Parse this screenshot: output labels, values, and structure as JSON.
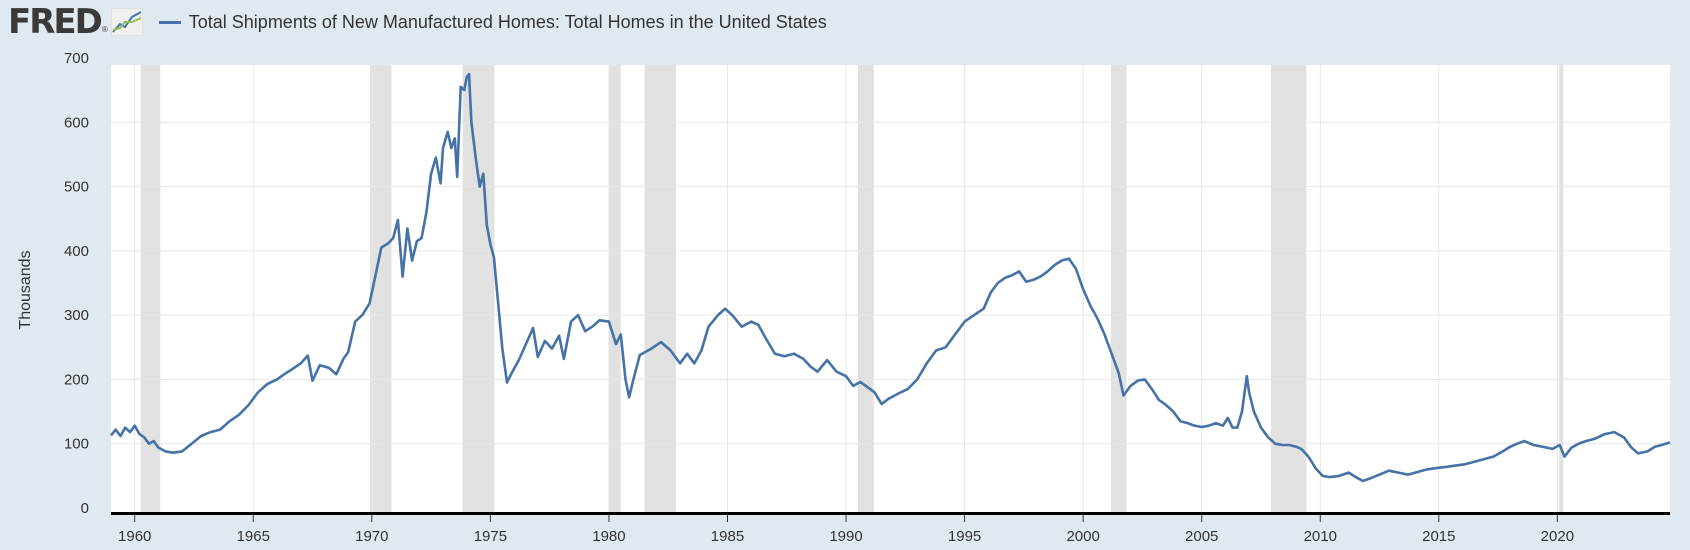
{
  "header": {
    "logo_text": "FRED",
    "logo_reg": "®",
    "series_title": "Total Shipments of New Manufactured Homes: Total Homes in the United States"
  },
  "colors": {
    "series": "#4572a7",
    "recession": "#e1e1e1",
    "background": "#e1e9f0",
    "plot": "#ffffff"
  },
  "chart_data": {
    "type": "line",
    "title": "Total Shipments of New Manufactured Homes: Total Homes in the United States",
    "ylabel": "Thousands",
    "xlabel": "",
    "ylim": [
      0,
      700
    ],
    "xlim": [
      1959.0,
      2024.75
    ],
    "yticks": [
      0,
      100,
      200,
      300,
      400,
      500,
      600,
      700
    ],
    "xticks": [
      1960,
      1965,
      1970,
      1975,
      1980,
      1985,
      1990,
      1995,
      2000,
      2005,
      2010,
      2015,
      2020
    ],
    "grid": true,
    "legend": "top-left",
    "recessions": [
      [
        1960.25,
        1961.08
      ],
      [
        1969.92,
        1970.83
      ],
      [
        1973.83,
        1975.17
      ],
      [
        1980.0,
        1980.5
      ],
      [
        1981.5,
        1982.83
      ],
      [
        1990.5,
        1991.17
      ],
      [
        2001.17,
        2001.83
      ],
      [
        2007.92,
        2009.42
      ],
      [
        2020.08,
        2020.25
      ]
    ],
    "series": [
      {
        "name": "Total Shipments of New Manufactured Homes: Total Homes in the United States",
        "points": [
          [
            1959.0,
            113
          ],
          [
            1959.2,
            122
          ],
          [
            1959.4,
            112
          ],
          [
            1959.6,
            125
          ],
          [
            1959.8,
            118
          ],
          [
            1960.0,
            128
          ],
          [
            1960.2,
            115
          ],
          [
            1960.4,
            110
          ],
          [
            1960.6,
            100
          ],
          [
            1960.8,
            104
          ],
          [
            1961.0,
            94
          ],
          [
            1961.3,
            88
          ],
          [
            1961.6,
            86
          ],
          [
            1962.0,
            88
          ],
          [
            1962.4,
            100
          ],
          [
            1962.8,
            112
          ],
          [
            1963.2,
            118
          ],
          [
            1963.6,
            122
          ],
          [
            1964.0,
            135
          ],
          [
            1964.4,
            145
          ],
          [
            1964.8,
            160
          ],
          [
            1965.2,
            180
          ],
          [
            1965.6,
            193
          ],
          [
            1966.0,
            200
          ],
          [
            1966.3,
            208
          ],
          [
            1966.6,
            215
          ],
          [
            1967.0,
            225
          ],
          [
            1967.3,
            237
          ],
          [
            1967.5,
            198
          ],
          [
            1967.8,
            222
          ],
          [
            1968.2,
            218
          ],
          [
            1968.5,
            208
          ],
          [
            1968.8,
            232
          ],
          [
            1969.0,
            242
          ],
          [
            1969.3,
            290
          ],
          [
            1969.6,
            300
          ],
          [
            1969.9,
            318
          ],
          [
            1970.2,
            370
          ],
          [
            1970.4,
            405
          ],
          [
            1970.7,
            412
          ],
          [
            1970.9,
            420
          ],
          [
            1971.1,
            448
          ],
          [
            1971.3,
            360
          ],
          [
            1971.5,
            435
          ],
          [
            1971.7,
            385
          ],
          [
            1971.9,
            415
          ],
          [
            1972.1,
            420
          ],
          [
            1972.3,
            460
          ],
          [
            1972.5,
            520
          ],
          [
            1972.7,
            545
          ],
          [
            1972.9,
            505
          ],
          [
            1973.0,
            560
          ],
          [
            1973.2,
            585
          ],
          [
            1973.35,
            560
          ],
          [
            1973.5,
            575
          ],
          [
            1973.6,
            515
          ],
          [
            1973.75,
            655
          ],
          [
            1973.9,
            650
          ],
          [
            1974.0,
            670
          ],
          [
            1974.1,
            675
          ],
          [
            1974.2,
            600
          ],
          [
            1974.4,
            540
          ],
          [
            1974.55,
            500
          ],
          [
            1974.7,
            520
          ],
          [
            1974.85,
            440
          ],
          [
            1975.0,
            410
          ],
          [
            1975.15,
            390
          ],
          [
            1975.3,
            330
          ],
          [
            1975.5,
            250
          ],
          [
            1975.7,
            195
          ],
          [
            1975.9,
            210
          ],
          [
            1976.2,
            230
          ],
          [
            1976.5,
            255
          ],
          [
            1976.8,
            280
          ],
          [
            1977.0,
            235
          ],
          [
            1977.3,
            260
          ],
          [
            1977.6,
            248
          ],
          [
            1977.9,
            268
          ],
          [
            1978.1,
            232
          ],
          [
            1978.4,
            290
          ],
          [
            1978.7,
            300
          ],
          [
            1979.0,
            275
          ],
          [
            1979.3,
            282
          ],
          [
            1979.6,
            292
          ],
          [
            1980.0,
            290
          ],
          [
            1980.3,
            255
          ],
          [
            1980.5,
            270
          ],
          [
            1980.7,
            200
          ],
          [
            1980.85,
            172
          ],
          [
            1981.0,
            195
          ],
          [
            1981.3,
            238
          ],
          [
            1981.7,
            246
          ],
          [
            1982.2,
            258
          ],
          [
            1982.6,
            245
          ],
          [
            1983.0,
            225
          ],
          [
            1983.3,
            240
          ],
          [
            1983.6,
            225
          ],
          [
            1983.9,
            245
          ],
          [
            1984.2,
            282
          ],
          [
            1984.6,
            300
          ],
          [
            1984.9,
            310
          ],
          [
            1985.2,
            300
          ],
          [
            1985.6,
            282
          ],
          [
            1986.0,
            290
          ],
          [
            1986.3,
            285
          ],
          [
            1986.6,
            265
          ],
          [
            1987.0,
            240
          ],
          [
            1987.4,
            236
          ],
          [
            1987.8,
            240
          ],
          [
            1988.2,
            232
          ],
          [
            1988.5,
            220
          ],
          [
            1988.8,
            212
          ],
          [
            1989.2,
            230
          ],
          [
            1989.6,
            212
          ],
          [
            1990.0,
            205
          ],
          [
            1990.3,
            190
          ],
          [
            1990.6,
            196
          ],
          [
            1990.9,
            188
          ],
          [
            1991.2,
            180
          ],
          [
            1991.5,
            162
          ],
          [
            1991.8,
            170
          ],
          [
            1992.2,
            178
          ],
          [
            1992.6,
            185
          ],
          [
            1993.0,
            200
          ],
          [
            1993.4,
            225
          ],
          [
            1993.8,
            245
          ],
          [
            1994.2,
            250
          ],
          [
            1994.6,
            270
          ],
          [
            1995.0,
            290
          ],
          [
            1995.4,
            300
          ],
          [
            1995.8,
            310
          ],
          [
            1996.1,
            335
          ],
          [
            1996.4,
            350
          ],
          [
            1996.7,
            358
          ],
          [
            1997.0,
            362
          ],
          [
            1997.3,
            368
          ],
          [
            1997.6,
            352
          ],
          [
            1997.9,
            355
          ],
          [
            1998.2,
            360
          ],
          [
            1998.5,
            368
          ],
          [
            1998.8,
            378
          ],
          [
            1999.1,
            385
          ],
          [
            1999.4,
            388
          ],
          [
            1999.7,
            372
          ],
          [
            2000.0,
            340
          ],
          [
            2000.3,
            315
          ],
          [
            2000.6,
            295
          ],
          [
            2000.9,
            270
          ],
          [
            2001.2,
            240
          ],
          [
            2001.5,
            210
          ],
          [
            2001.7,
            175
          ],
          [
            2002.0,
            190
          ],
          [
            2002.3,
            198
          ],
          [
            2002.6,
            200
          ],
          [
            2002.9,
            185
          ],
          [
            2003.2,
            168
          ],
          [
            2003.5,
            160
          ],
          [
            2003.8,
            150
          ],
          [
            2004.1,
            135
          ],
          [
            2004.4,
            132
          ],
          [
            2004.7,
            128
          ],
          [
            2005.0,
            126
          ],
          [
            2005.3,
            128
          ],
          [
            2005.6,
            132
          ],
          [
            2005.9,
            128
          ],
          [
            2006.1,
            140
          ],
          [
            2006.3,
            125
          ],
          [
            2006.5,
            125
          ],
          [
            2006.7,
            150
          ],
          [
            2006.9,
            205
          ],
          [
            2007.0,
            180
          ],
          [
            2007.2,
            150
          ],
          [
            2007.5,
            125
          ],
          [
            2007.8,
            110
          ],
          [
            2008.1,
            100
          ],
          [
            2008.4,
            98
          ],
          [
            2008.7,
            98
          ],
          [
            2009.0,
            95
          ],
          [
            2009.2,
            92
          ],
          [
            2009.5,
            80
          ],
          [
            2009.8,
            62
          ],
          [
            2010.1,
            50
          ],
          [
            2010.4,
            48
          ],
          [
            2010.8,
            50
          ],
          [
            2011.2,
            55
          ],
          [
            2011.5,
            48
          ],
          [
            2011.8,
            42
          ],
          [
            2012.1,
            46
          ],
          [
            2012.5,
            52
          ],
          [
            2012.9,
            58
          ],
          [
            2013.3,
            55
          ],
          [
            2013.7,
            52
          ],
          [
            2014.1,
            56
          ],
          [
            2014.5,
            60
          ],
          [
            2014.9,
            62
          ],
          [
            2015.3,
            64
          ],
          [
            2015.7,
            66
          ],
          [
            2016.1,
            68
          ],
          [
            2016.5,
            72
          ],
          [
            2016.9,
            76
          ],
          [
            2017.3,
            80
          ],
          [
            2017.7,
            88
          ],
          [
            2018.0,
            95
          ],
          [
            2018.3,
            100
          ],
          [
            2018.6,
            104
          ],
          [
            2019.0,
            98
          ],
          [
            2019.4,
            95
          ],
          [
            2019.8,
            92
          ],
          [
            2020.1,
            98
          ],
          [
            2020.3,
            80
          ],
          [
            2020.6,
            94
          ],
          [
            2020.9,
            100
          ],
          [
            2021.2,
            104
          ],
          [
            2021.6,
            108
          ],
          [
            2022.0,
            115
          ],
          [
            2022.4,
            118
          ],
          [
            2022.8,
            110
          ],
          [
            2023.1,
            95
          ],
          [
            2023.4,
            85
          ],
          [
            2023.8,
            88
          ],
          [
            2024.1,
            95
          ],
          [
            2024.4,
            98
          ],
          [
            2024.75,
            102
          ]
        ]
      }
    ]
  }
}
